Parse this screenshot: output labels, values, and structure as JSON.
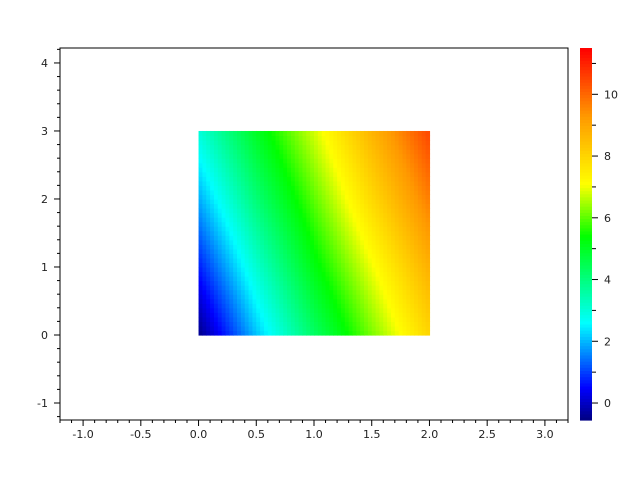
{
  "chart_data": {
    "type": "heatmap",
    "title": "",
    "xlabel": "",
    "ylabel": "",
    "xlim": [
      -1.2,
      3.2
    ],
    "ylim": [
      -1.25,
      4.22
    ],
    "grid": false,
    "x_ticks": [
      "-1.0",
      "-0.5",
      "0.0",
      "0.5",
      "1.0",
      "1.5",
      "2.0",
      "2.5",
      "3.0"
    ],
    "x_tick_values": [
      -1.0,
      -0.5,
      0.0,
      0.5,
      1.0,
      1.5,
      2.0,
      2.5,
      3.0
    ],
    "y_ticks": [
      "-1",
      "0",
      "1",
      "2",
      "3",
      "4"
    ],
    "y_tick_values": [
      -1,
      0,
      1,
      2,
      3,
      4
    ],
    "grid_x": [
      0,
      0.5,
      1.0,
      1.5,
      2.0
    ],
    "grid_y": [
      0,
      1,
      2,
      3
    ],
    "z": [
      [
        -0.5,
        2.1,
        4.3,
        6.2,
        8.0
      ],
      [
        0.7,
        3.1,
        5.2,
        7.0,
        8.8
      ],
      [
        1.9,
        4.1,
        6.0,
        7.9,
        9.7
      ],
      [
        3.0,
        5.0,
        6.8,
        8.7,
        10.5
      ]
    ],
    "colorbar": {
      "range": [
        -0.55,
        11.5
      ],
      "ticks": [
        "0",
        "2",
        "4",
        "6",
        "8",
        "10"
      ],
      "tick_values": [
        0,
        2,
        4,
        6,
        8,
        10
      ],
      "colormap": [
        {
          "value": -0.55,
          "color": "#000080"
        },
        {
          "value": 0.5,
          "color": "#0000ff"
        },
        {
          "value": 2.6,
          "color": "#00ffff"
        },
        {
          "value": 5.4,
          "color": "#00ff00"
        },
        {
          "value": 7.1,
          "color": "#ffff00"
        },
        {
          "value": 9.3,
          "color": "#ff9900"
        },
        {
          "value": 11.5,
          "color": "#ff0000"
        }
      ]
    }
  }
}
